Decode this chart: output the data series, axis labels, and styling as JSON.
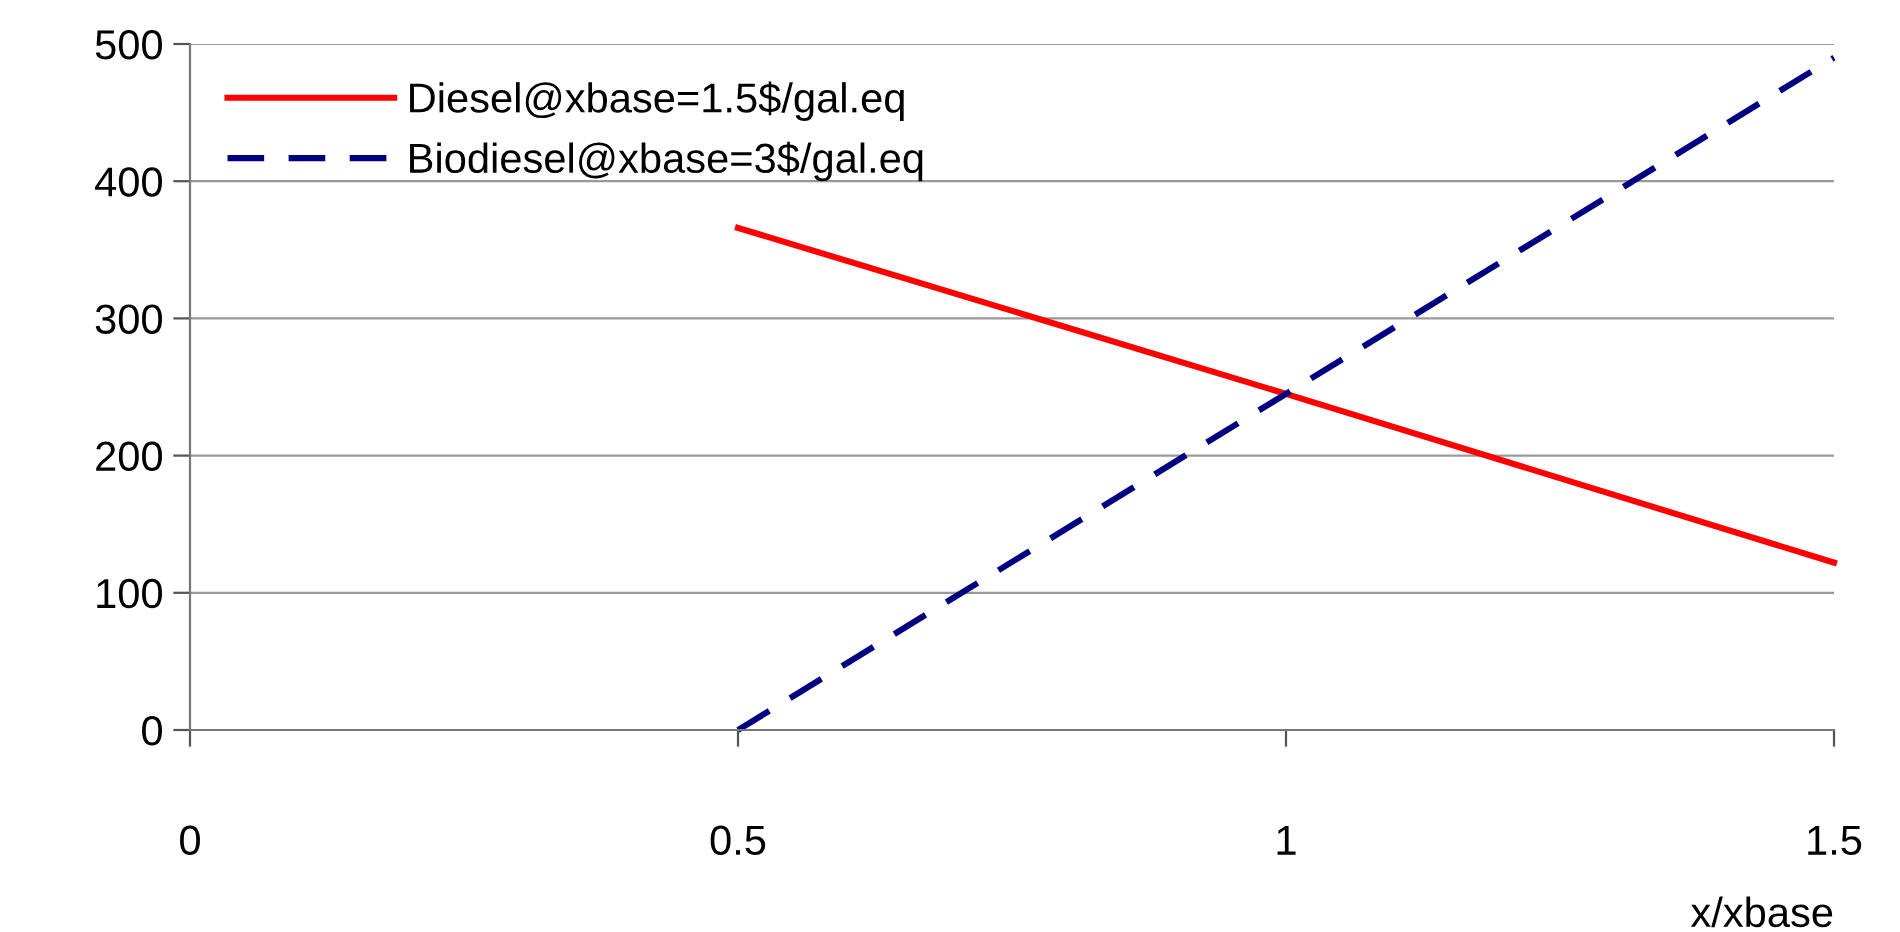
{
  "chart_data": {
    "type": "line",
    "xlabel": "x/xbase",
    "x": [
      0.5,
      1,
      1.5
    ],
    "series": [
      {
        "name": "Diesel@xbase=1.5$/gal.eq",
        "color": "#ff0000",
        "values": [
          366,
          245,
          122
        ],
        "line_style": "solid"
      },
      {
        "name": "Biodiesel@xbase=3$/gal.eq",
        "color": "#000080",
        "values": [
          0,
          245,
          490
        ],
        "line_style": "dashed"
      }
    ],
    "xlim": [
      0,
      1.5
    ],
    "xticks": [
      0,
      0.5,
      1,
      1.5
    ],
    "ylim": [
      0,
      500
    ],
    "yticks": [
      0,
      100,
      200,
      300,
      400,
      500
    ],
    "grid": "y",
    "legend": "top left",
    "marker": "none"
  }
}
